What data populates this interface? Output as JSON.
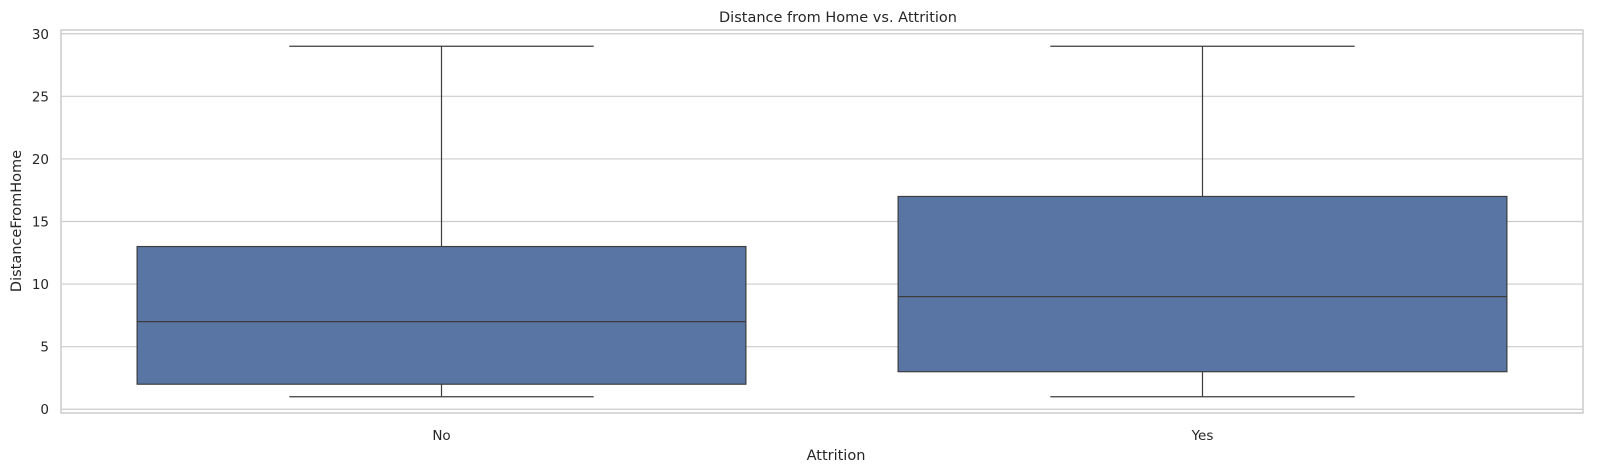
{
  "chart_data": {
    "type": "box",
    "title": "Distance from Home vs. Attrition",
    "xlabel": "Attrition",
    "ylabel": "DistanceFromHome",
    "categories": [
      "No",
      "Yes"
    ],
    "boxes": [
      {
        "category": "No",
        "whisker_low": 1,
        "q1": 2,
        "median": 7,
        "q3": 13,
        "whisker_high": 29
      },
      {
        "category": "Yes",
        "whisker_low": 1,
        "q1": 3,
        "median": 9,
        "q3": 17,
        "whisker_high": 29
      }
    ],
    "ylim": [
      -0.3,
      30.3
    ],
    "yticks": [
      0,
      5,
      10,
      15,
      20,
      25,
      30
    ],
    "grid": true,
    "colors": {
      "box_fill": "#5875a4",
      "line": "#3d3d3d",
      "grid": "#cccccc"
    }
  }
}
